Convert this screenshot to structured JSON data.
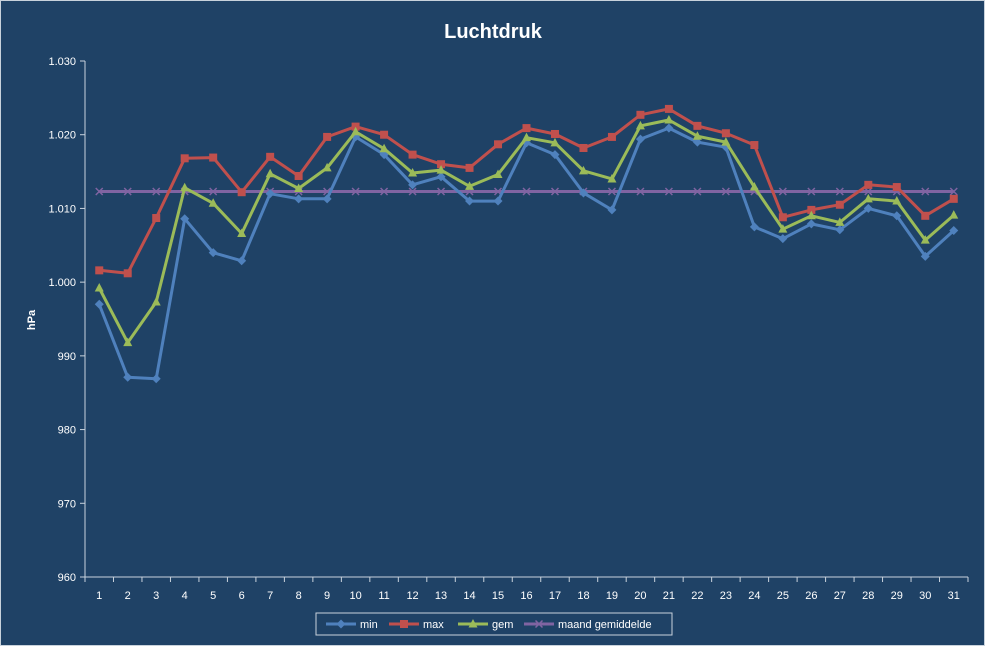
{
  "colors": {
    "background": "#1f4266",
    "border": "#c8d2dc",
    "axis": "#c9d3dd",
    "text": "#ffffff",
    "min": "#4f81bd",
    "max": "#c0504d",
    "gem": "#9bbb59",
    "avg": "#8064a2"
  },
  "chart_data": {
    "type": "line",
    "title": "Luchtdruk",
    "xlabel": "",
    "ylabel": "hPa",
    "ylim": [
      960,
      1030
    ],
    "yticks": [
      "960",
      "970",
      "980",
      "990",
      "1.000",
      "1.010",
      "1.020",
      "1.030"
    ],
    "grid": false,
    "legend_position": "bottom",
    "categories": [
      "1",
      "2",
      "3",
      "4",
      "5",
      "6",
      "7",
      "8",
      "9",
      "10",
      "11",
      "12",
      "13",
      "14",
      "15",
      "16",
      "17",
      "18",
      "19",
      "20",
      "21",
      "22",
      "23",
      "24",
      "25",
      "26",
      "27",
      "28",
      "29",
      "30",
      "31"
    ],
    "series": [
      {
        "name": "min",
        "marker": "diamond",
        "color": "#4f81bd",
        "values": [
          997.0,
          987.1,
          986.9,
          1008.6,
          1004.0,
          1002.9,
          1012.0,
          1011.3,
          1011.3,
          1019.7,
          1017.3,
          1013.2,
          1014.3,
          1011.0,
          1011.0,
          1018.9,
          1017.3,
          1012.1,
          1009.8,
          1019.4,
          1020.9,
          1019.0,
          1018.3,
          1007.5,
          1005.9,
          1007.9,
          1007.1,
          1010.0,
          1009.0,
          1003.5,
          1007.0
        ]
      },
      {
        "name": "max",
        "marker": "square",
        "color": "#c0504d",
        "values": [
          1001.6,
          1001.2,
          1008.7,
          1016.8,
          1016.9,
          1012.2,
          1017.0,
          1014.4,
          1019.7,
          1021.1,
          1020.0,
          1017.3,
          1016.0,
          1015.5,
          1018.7,
          1020.9,
          1020.1,
          1018.2,
          1019.7,
          1022.7,
          1023.5,
          1021.2,
          1020.2,
          1018.6,
          1008.8,
          1009.8,
          1010.5,
          1013.2,
          1012.9,
          1009.0,
          1011.3
        ]
      },
      {
        "name": "gem",
        "marker": "triangle",
        "color": "#9bbb59",
        "values": [
          999.2,
          991.8,
          997.3,
          1012.8,
          1010.7,
          1006.6,
          1014.7,
          1012.7,
          1015.5,
          1020.4,
          1018.1,
          1014.8,
          1015.2,
          1013.0,
          1014.6,
          1019.6,
          1018.9,
          1015.1,
          1014.0,
          1021.2,
          1022.0,
          1019.8,
          1019.0,
          1012.9,
          1007.2,
          1009.0,
          1008.1,
          1011.3,
          1011.0,
          1005.7,
          1009.1
        ]
      },
      {
        "name": "maand gemiddelde",
        "marker": "x",
        "color": "#8064a2",
        "values": [
          1012.3,
          1012.3,
          1012.3,
          1012.3,
          1012.3,
          1012.3,
          1012.3,
          1012.3,
          1012.3,
          1012.3,
          1012.3,
          1012.3,
          1012.3,
          1012.3,
          1012.3,
          1012.3,
          1012.3,
          1012.3,
          1012.3,
          1012.3,
          1012.3,
          1012.3,
          1012.3,
          1012.3,
          1012.3,
          1012.3,
          1012.3,
          1012.3,
          1012.3,
          1012.3,
          1012.3
        ]
      }
    ]
  }
}
